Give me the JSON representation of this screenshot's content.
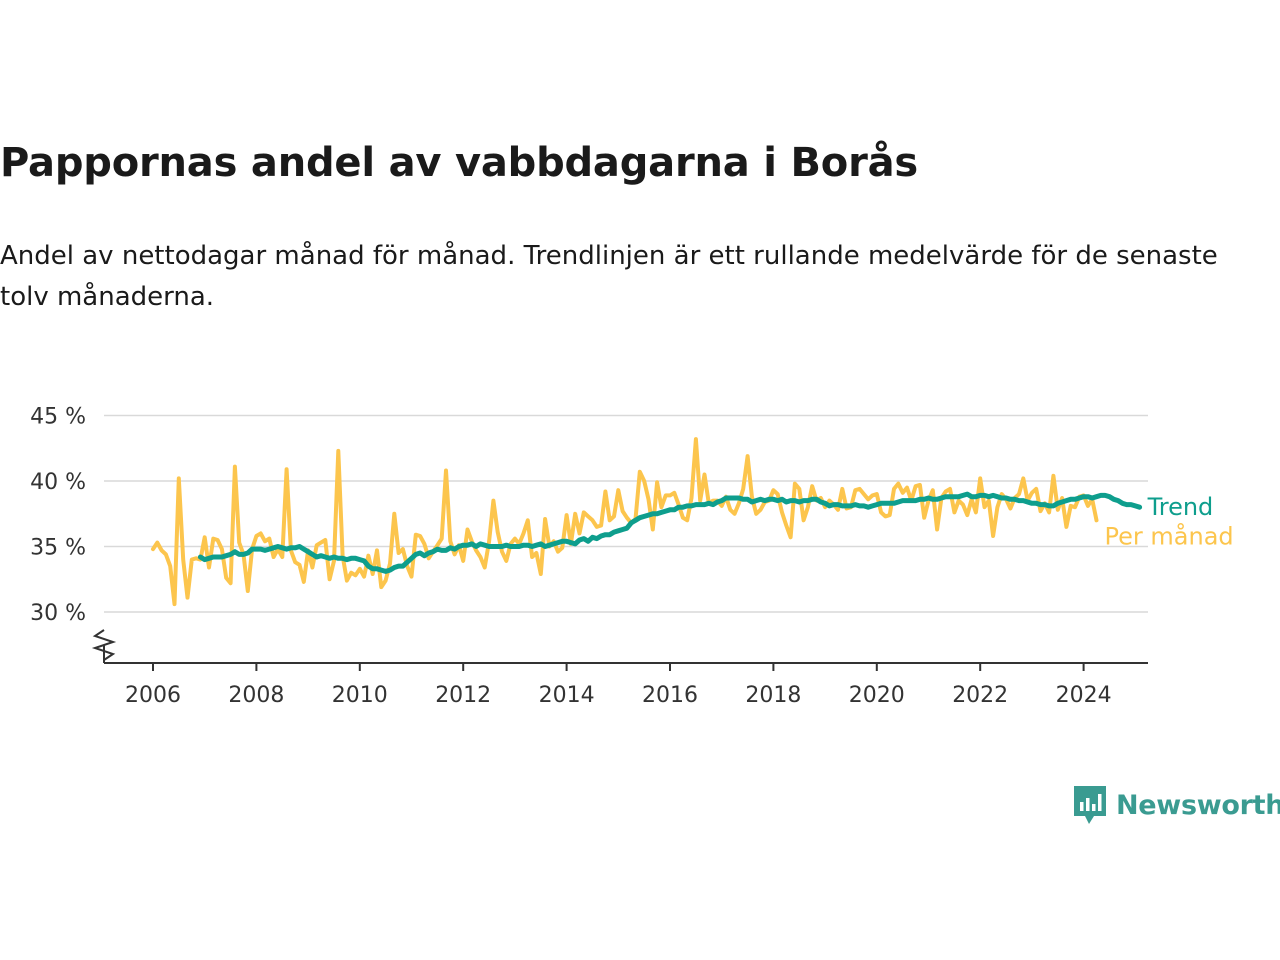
{
  "title": "Pappornas andel av vabbdagarna i Borås",
  "subtitle": "Andel av nettodagar månad för månad. Trendlinjen är ett rullande medelvärde för de senaste tolv månaderna.",
  "brand": {
    "name": "Newsworthy",
    "color": "#3a9b91",
    "icon": "chart-speech-bubble-icon"
  },
  "colors": {
    "monthly": "#fcc54d",
    "trend": "#0e9e8d",
    "grid": "#d9d9d9",
    "axis": "#333333"
  },
  "chart_data": {
    "type": "line",
    "xlabel": "",
    "ylabel": "",
    "x_ticks": [
      "2006",
      "2008",
      "2010",
      "2012",
      "2014",
      "2016",
      "2018",
      "2020",
      "2022",
      "2024"
    ],
    "y_ticks": [
      30,
      35,
      40,
      45
    ],
    "y_tick_labels": [
      "30 %",
      "35 %",
      "40 %",
      "45 %"
    ],
    "ylim": [
      26,
      45
    ],
    "xlim": [
      2005.0,
      2025.2
    ],
    "y_axis_break": true,
    "grid": "horizontal",
    "legend": "inline labels at line ends",
    "series": [
      {
        "name": "Per månad",
        "start": 2006.0,
        "step_months": 1,
        "values": [
          34.8,
          35.3,
          34.7,
          34.4,
          33.5,
          30.6,
          40.2,
          34.0,
          31.1,
          34.0,
          34.1,
          34.0,
          35.7,
          33.4,
          35.6,
          35.5,
          34.8,
          32.6,
          32.2,
          41.1,
          35.3,
          34.4,
          31.6,
          34.8,
          35.8,
          36.0,
          35.4,
          35.6,
          34.2,
          34.8,
          34.2,
          40.9,
          34.7,
          33.8,
          33.6,
          32.3,
          34.7,
          33.4,
          35.1,
          35.3,
          35.5,
          32.5,
          33.9,
          42.3,
          34.3,
          32.4,
          33.0,
          32.8,
          33.3,
          32.7,
          34.3,
          32.9,
          34.7,
          31.9,
          32.4,
          33.7,
          37.5,
          34.5,
          34.8,
          33.5,
          32.7,
          35.9,
          35.8,
          35.2,
          34.1,
          34.6,
          35.1,
          35.6,
          40.8,
          35.4,
          34.4,
          35.1,
          33.9,
          36.3,
          35.4,
          34.7,
          34.2,
          33.4,
          35.4,
          38.5,
          36.1,
          34.6,
          33.9,
          35.2,
          35.6,
          35.2,
          36.0,
          37.0,
          34.2,
          34.5,
          32.9,
          37.1,
          35.0,
          35.4,
          34.6,
          34.9,
          37.4,
          35.2,
          37.5,
          36.0,
          37.6,
          37.3,
          37.0,
          36.5,
          36.6,
          39.2,
          37.0,
          37.3,
          39.3,
          37.7,
          37.2,
          36.8,
          37.1,
          40.7,
          40.0,
          38.6,
          36.3,
          39.9,
          38.0,
          38.9,
          38.9,
          39.1,
          38.2,
          37.2,
          37.0,
          38.7,
          43.2,
          38.5,
          40.5,
          38.3,
          38.5,
          38.5,
          38.1,
          38.8,
          37.8,
          37.5,
          38.3,
          39.4,
          41.9,
          38.8,
          37.5,
          37.8,
          38.4,
          38.5,
          39.3,
          39.0,
          37.6,
          36.6,
          35.7,
          39.8,
          39.4,
          37.0,
          38.0,
          39.6,
          38.5,
          38.7,
          38.0,
          38.5,
          38.2,
          37.8,
          39.4,
          37.9,
          38.0,
          39.3,
          39.4,
          39.0,
          38.6,
          38.9,
          39.0,
          37.6,
          37.3,
          37.4,
          39.4,
          39.8,
          39.1,
          39.5,
          38.5,
          39.6,
          39.7,
          37.2,
          38.5,
          39.3,
          36.3,
          38.7,
          39.2,
          39.4,
          37.6,
          38.5,
          38.2,
          37.4,
          38.6,
          37.6,
          40.2,
          38.0,
          38.5,
          35.8,
          38.0,
          39.0,
          38.6,
          37.9,
          38.7,
          39.0,
          40.2,
          38.5,
          39.1,
          39.4,
          37.7,
          38.3,
          37.6,
          40.4,
          37.8,
          38.7,
          36.5,
          38.1,
          38.0,
          38.8,
          38.9,
          38.1,
          38.6,
          37.0
        ]
      },
      {
        "name": "Trend",
        "start": 2006.9167,
        "step_months": 1,
        "values": [
          34.2,
          34.0,
          34.1,
          34.2,
          34.2,
          34.2,
          34.3,
          34.4,
          34.6,
          34.4,
          34.4,
          34.5,
          34.8,
          34.8,
          34.8,
          34.7,
          34.8,
          34.9,
          35.0,
          34.9,
          34.8,
          34.9,
          34.9,
          35.0,
          34.8,
          34.6,
          34.4,
          34.2,
          34.3,
          34.2,
          34.1,
          34.2,
          34.1,
          34.1,
          34.0,
          34.1,
          34.1,
          34.0,
          33.9,
          33.5,
          33.3,
          33.3,
          33.2,
          33.1,
          33.2,
          33.4,
          33.5,
          33.5,
          33.8,
          34.1,
          34.4,
          34.5,
          34.3,
          34.5,
          34.6,
          34.8,
          34.7,
          34.7,
          34.9,
          34.8,
          35.0,
          35.1,
          35.1,
          35.2,
          35.0,
          35.2,
          35.1,
          35.0,
          35.0,
          35.0,
          35.0,
          35.1,
          35.0,
          35.0,
          35.0,
          35.1,
          35.1,
          35.0,
          35.1,
          35.2,
          35.0,
          35.1,
          35.2,
          35.3,
          35.4,
          35.4,
          35.3,
          35.2,
          35.5,
          35.6,
          35.4,
          35.7,
          35.6,
          35.8,
          35.9,
          35.9,
          36.1,
          36.2,
          36.3,
          36.4,
          36.8,
          37.0,
          37.2,
          37.3,
          37.4,
          37.5,
          37.5,
          37.6,
          37.7,
          37.8,
          37.8,
          38.0,
          38.0,
          38.1,
          38.1,
          38.2,
          38.2,
          38.2,
          38.3,
          38.2,
          38.4,
          38.5,
          38.7,
          38.7,
          38.7,
          38.7,
          38.6,
          38.6,
          38.4,
          38.5,
          38.6,
          38.5,
          38.6,
          38.6,
          38.5,
          38.6,
          38.4,
          38.5,
          38.5,
          38.4,
          38.5,
          38.5,
          38.6,
          38.6,
          38.4,
          38.3,
          38.1,
          38.2,
          38.2,
          38.1,
          38.1,
          38.1,
          38.2,
          38.1,
          38.1,
          38.0,
          38.1,
          38.2,
          38.3,
          38.3,
          38.3,
          38.3,
          38.4,
          38.5,
          38.5,
          38.5,
          38.5,
          38.6,
          38.6,
          38.7,
          38.6,
          38.6,
          38.7,
          38.8,
          38.8,
          38.8,
          38.8,
          38.9,
          39.0,
          38.8,
          38.8,
          38.9,
          38.9,
          38.8,
          38.9,
          38.8,
          38.7,
          38.7,
          38.6,
          38.6,
          38.5,
          38.5,
          38.4,
          38.3,
          38.3,
          38.2,
          38.2,
          38.1,
          38.1,
          38.3,
          38.4,
          38.5,
          38.6,
          38.6,
          38.7,
          38.8,
          38.8,
          38.7,
          38.8,
          38.9,
          38.9,
          38.8,
          38.6,
          38.5,
          38.3,
          38.2,
          38.2,
          38.1,
          38.0
        ]
      }
    ]
  }
}
